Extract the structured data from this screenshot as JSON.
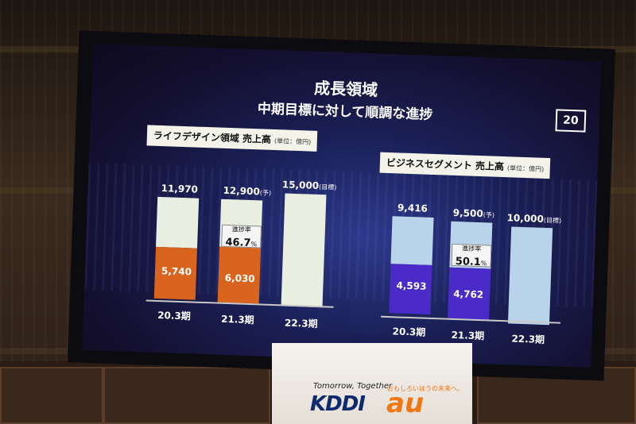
{
  "slide": {
    "title": "成長領域",
    "subtitle": "中期目標に対して順調な進捗",
    "page_number": "20"
  },
  "left_panel": {
    "label": "ライフデザイン領域  売上高",
    "unit": "(単位：億円)",
    "bars": [
      {
        "period": "20.3期",
        "total": "11,970",
        "note": "",
        "growth": "5,740",
        "growth_value": 5740,
        "total_value": 11970
      },
      {
        "period": "21.3期",
        "total": "12,900",
        "note": "(予)",
        "growth": "6,030",
        "growth_value": 6030,
        "total_value": 12900,
        "progress_label": "進捗率",
        "progress": "46.7",
        "progress_unit": "%"
      },
      {
        "period": "22.3期",
        "total": "15,000",
        "note": "(目標)",
        "total_value": 15000
      }
    ]
  },
  "right_panel": {
    "label": "ビジネスセグメント  売上高",
    "unit": "(単位：億円)",
    "bars": [
      {
        "period": "20.3期",
        "total": "9,416",
        "note": "",
        "growth": "4,593",
        "growth_value": 4593,
        "total_value": 9416
      },
      {
        "period": "21.3期",
        "total": "9,500",
        "note": "(予)",
        "growth": "4,762",
        "growth_value": 4762,
        "total_value": 9500,
        "progress_label": "進捗率",
        "progress": "50.1",
        "progress_unit": "%"
      },
      {
        "period": "22.3期",
        "total": "10,000",
        "note": "(目標)",
        "total_value": 10000
      }
    ]
  },
  "podium": {
    "tagline": "Tomorrow, Together",
    "brand1": "KDDI",
    "brand2": "au",
    "slogan": "おもしろいほうの未来へ。"
  },
  "colors": {
    "left_growth": "#d9641e",
    "left_rest": "#e9efe0",
    "right_growth": "#4a2bc8",
    "right_rest": "#b9d3ea"
  }
}
